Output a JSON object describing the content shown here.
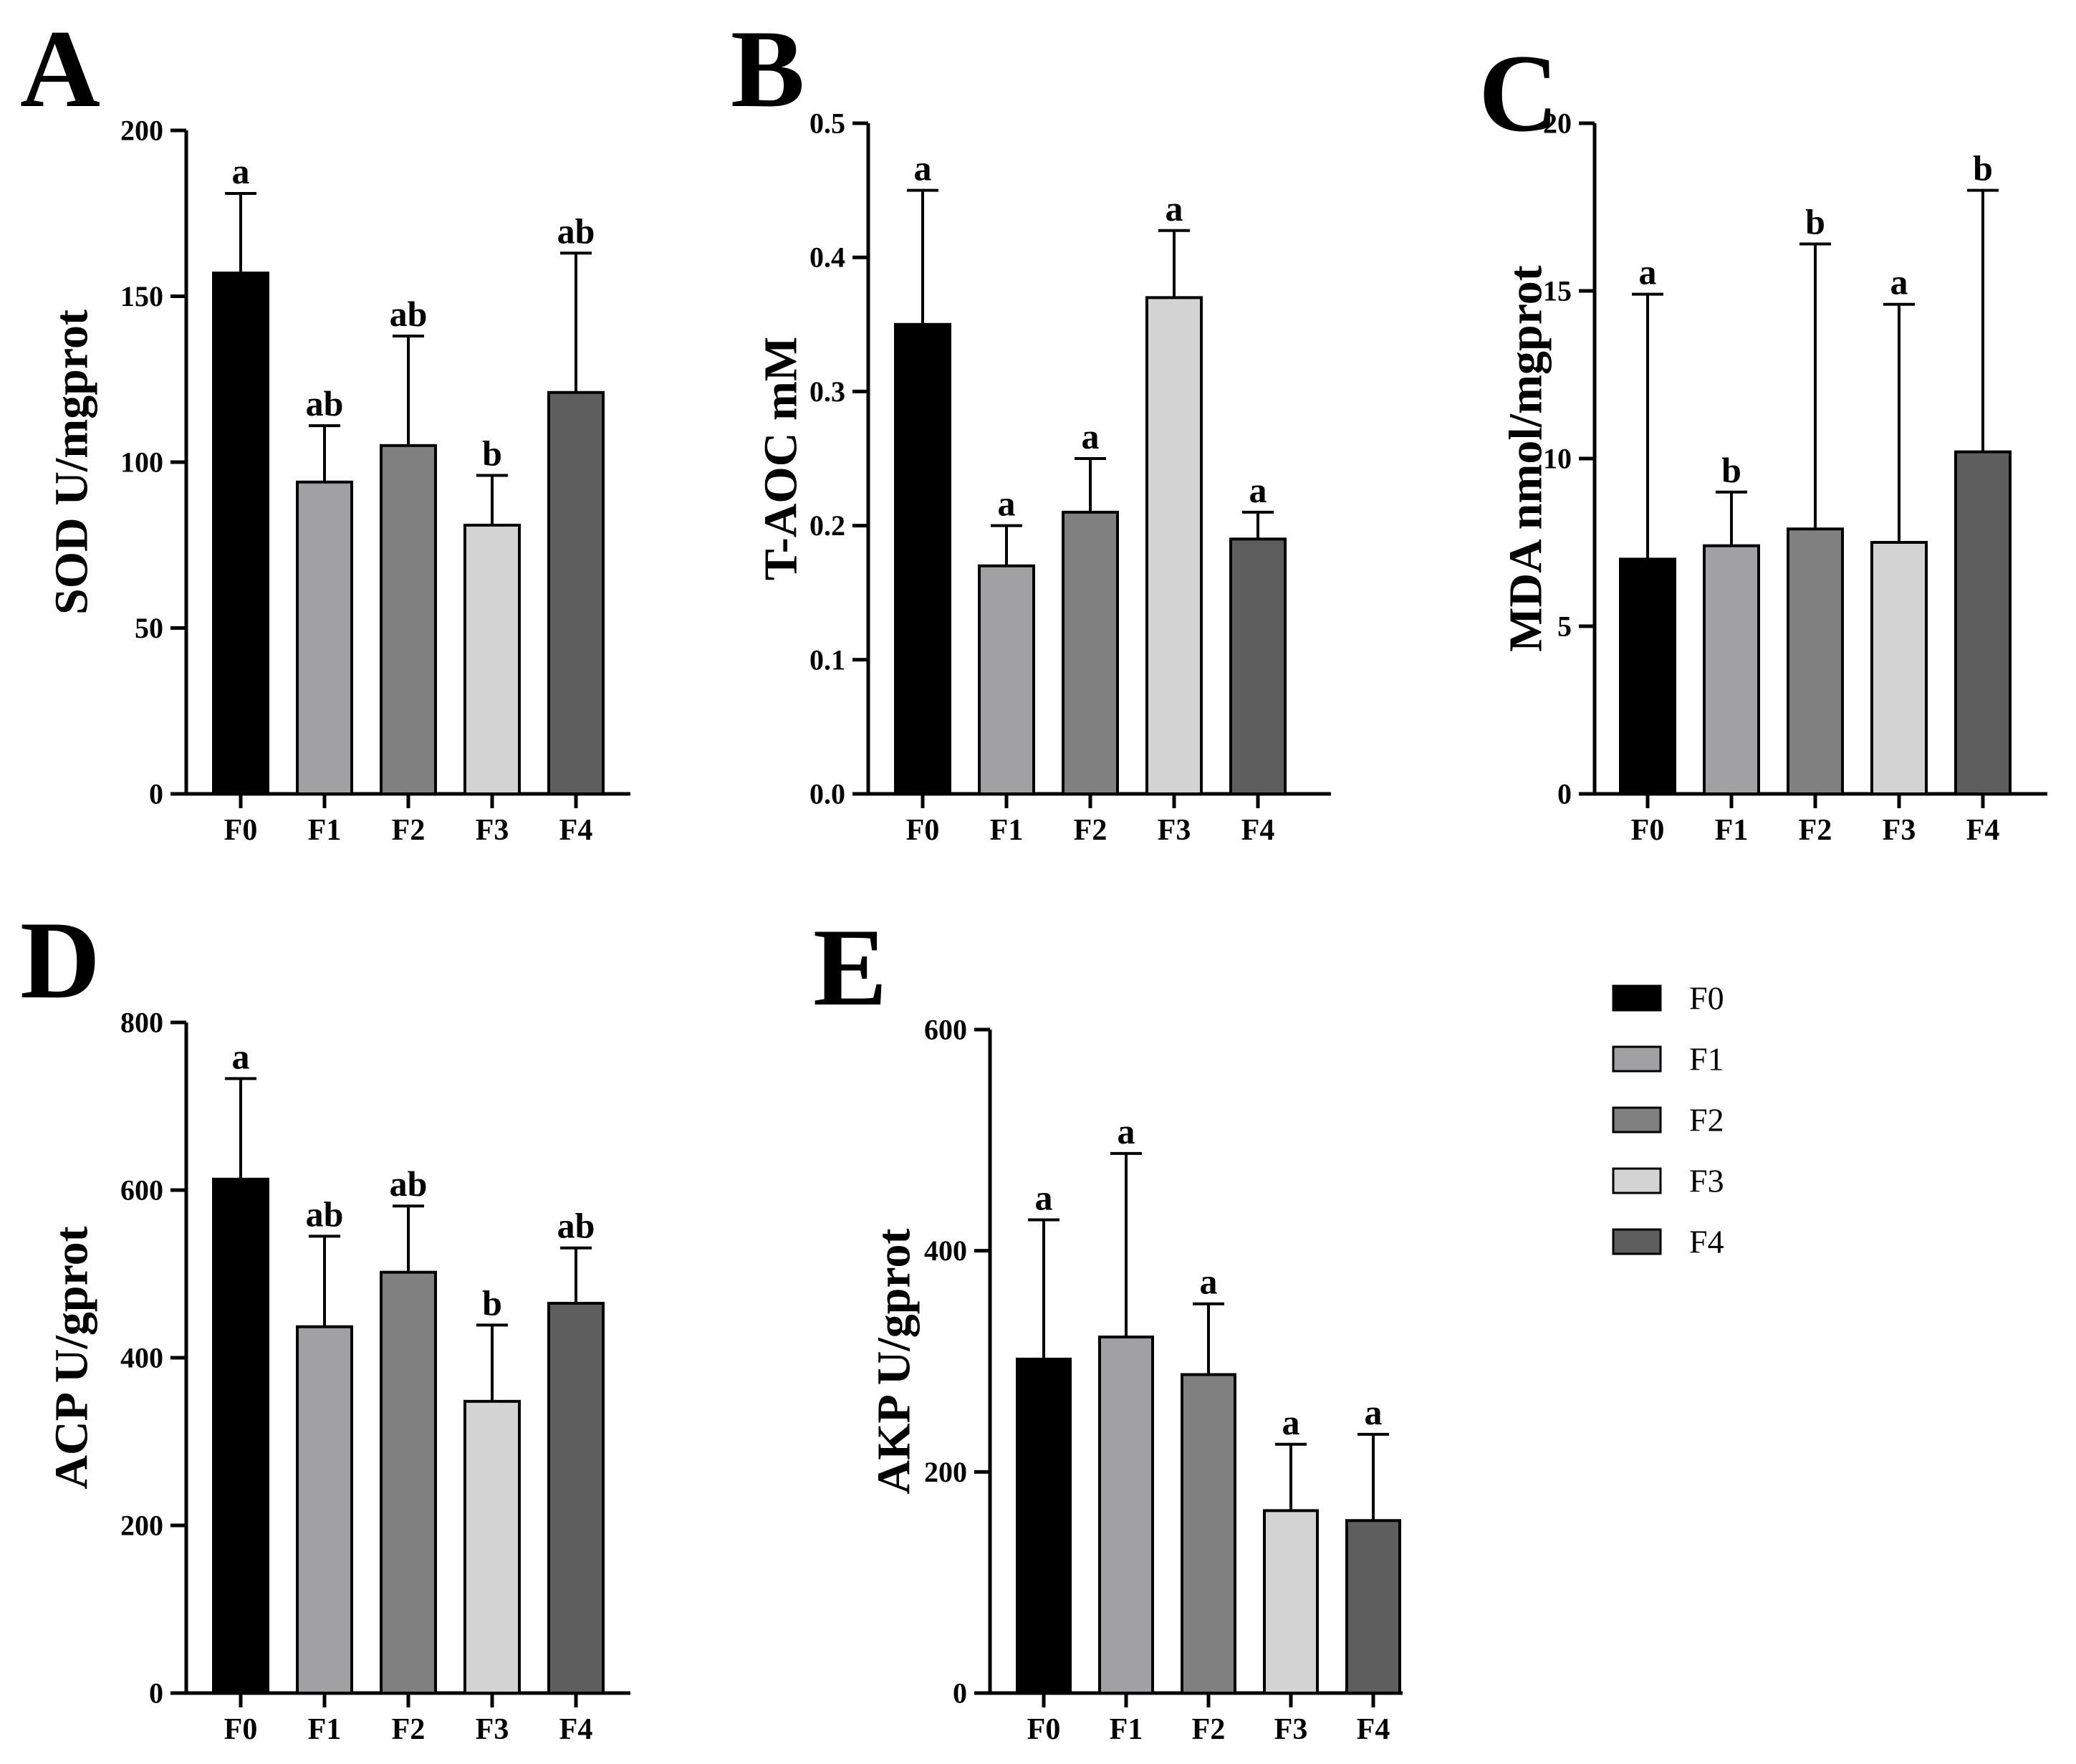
{
  "legend": {
    "items": [
      {
        "label": "F0",
        "color": "#000000"
      },
      {
        "label": "F1",
        "color": "#a0a0a5"
      },
      {
        "label": "F2",
        "color": "#808080"
      },
      {
        "label": "F3",
        "color": "#d3d3d3"
      },
      {
        "label": "F4",
        "color": "#5e5e5e"
      }
    ]
  },
  "chart_data": [
    {
      "panel": "A",
      "type": "bar",
      "ylabel": "SOD U/mgprot",
      "categories": [
        "F0",
        "F1",
        "F2",
        "F3",
        "F4"
      ],
      "values": [
        157,
        94,
        105,
        81,
        121
      ],
      "errors": [
        24,
        17,
        33,
        15,
        42
      ],
      "significance": [
        "a",
        "ab",
        "ab",
        "b",
        "ab"
      ],
      "ylim": [
        0,
        200
      ],
      "yticks": [
        0,
        50,
        100,
        150,
        200
      ],
      "ytick_labels": [
        "0",
        "50",
        "100",
        "150",
        "200"
      ]
    },
    {
      "panel": "B",
      "type": "bar",
      "ylabel": "T-AOC mM",
      "categories": [
        "F0",
        "F1",
        "F2",
        "F3",
        "F4"
      ],
      "values": [
        0.35,
        0.17,
        0.21,
        0.37,
        0.19
      ],
      "errors": [
        0.1,
        0.03,
        0.04,
        0.05,
        0.02
      ],
      "significance": [
        "a",
        "a",
        "a",
        "a",
        "a"
      ],
      "ylim": [
        0,
        0.5
      ],
      "yticks": [
        0,
        0.1,
        0.2,
        0.3,
        0.4,
        0.5
      ],
      "ytick_labels": [
        "0.0",
        "0.1",
        "0.2",
        "0.3",
        "0.4",
        "0.5"
      ]
    },
    {
      "panel": "C",
      "type": "bar",
      "ylabel": "MDA nmol/mgprot",
      "categories": [
        "F0",
        "F1",
        "F2",
        "F3",
        "F4"
      ],
      "values": [
        7.0,
        7.4,
        7.9,
        7.5,
        10.2
      ],
      "errors": [
        7.9,
        1.6,
        8.5,
        7.1,
        7.8
      ],
      "significance": [
        "a",
        "b",
        "b",
        "a",
        "b"
      ],
      "ylim": [
        0,
        20
      ],
      "yticks": [
        0,
        5,
        10,
        15,
        20
      ],
      "ytick_labels": [
        "0",
        "5",
        "10",
        "15",
        "20"
      ]
    },
    {
      "panel": "D",
      "type": "bar",
      "ylabel": "ACP U/gprot",
      "categories": [
        "F0",
        "F1",
        "F2",
        "F3",
        "F4"
      ],
      "values": [
        613,
        437,
        502,
        348,
        465
      ],
      "errors": [
        120,
        108,
        79,
        91,
        66
      ],
      "significance": [
        "a",
        "ab",
        "ab",
        "b",
        "ab"
      ],
      "ylim": [
        0,
        800
      ],
      "yticks": [
        0,
        200,
        400,
        600,
        800
      ],
      "ytick_labels": [
        "0",
        "200",
        "400",
        "600",
        "800"
      ]
    },
    {
      "panel": "E",
      "type": "bar",
      "ylabel": "AKP U/gprot",
      "categories": [
        "F0",
        "F1",
        "F2",
        "F3",
        "F4"
      ],
      "values": [
        302,
        322,
        288,
        165,
        156
      ],
      "errors": [
        126,
        166,
        64,
        60,
        78
      ],
      "significance": [
        "a",
        "a",
        "a",
        "a",
        "a"
      ],
      "ylim": [
        0,
        600
      ],
      "yticks": [
        0,
        200,
        400,
        600
      ],
      "ytick_labels": [
        "0",
        "200",
        "400",
        "600"
      ]
    }
  ]
}
